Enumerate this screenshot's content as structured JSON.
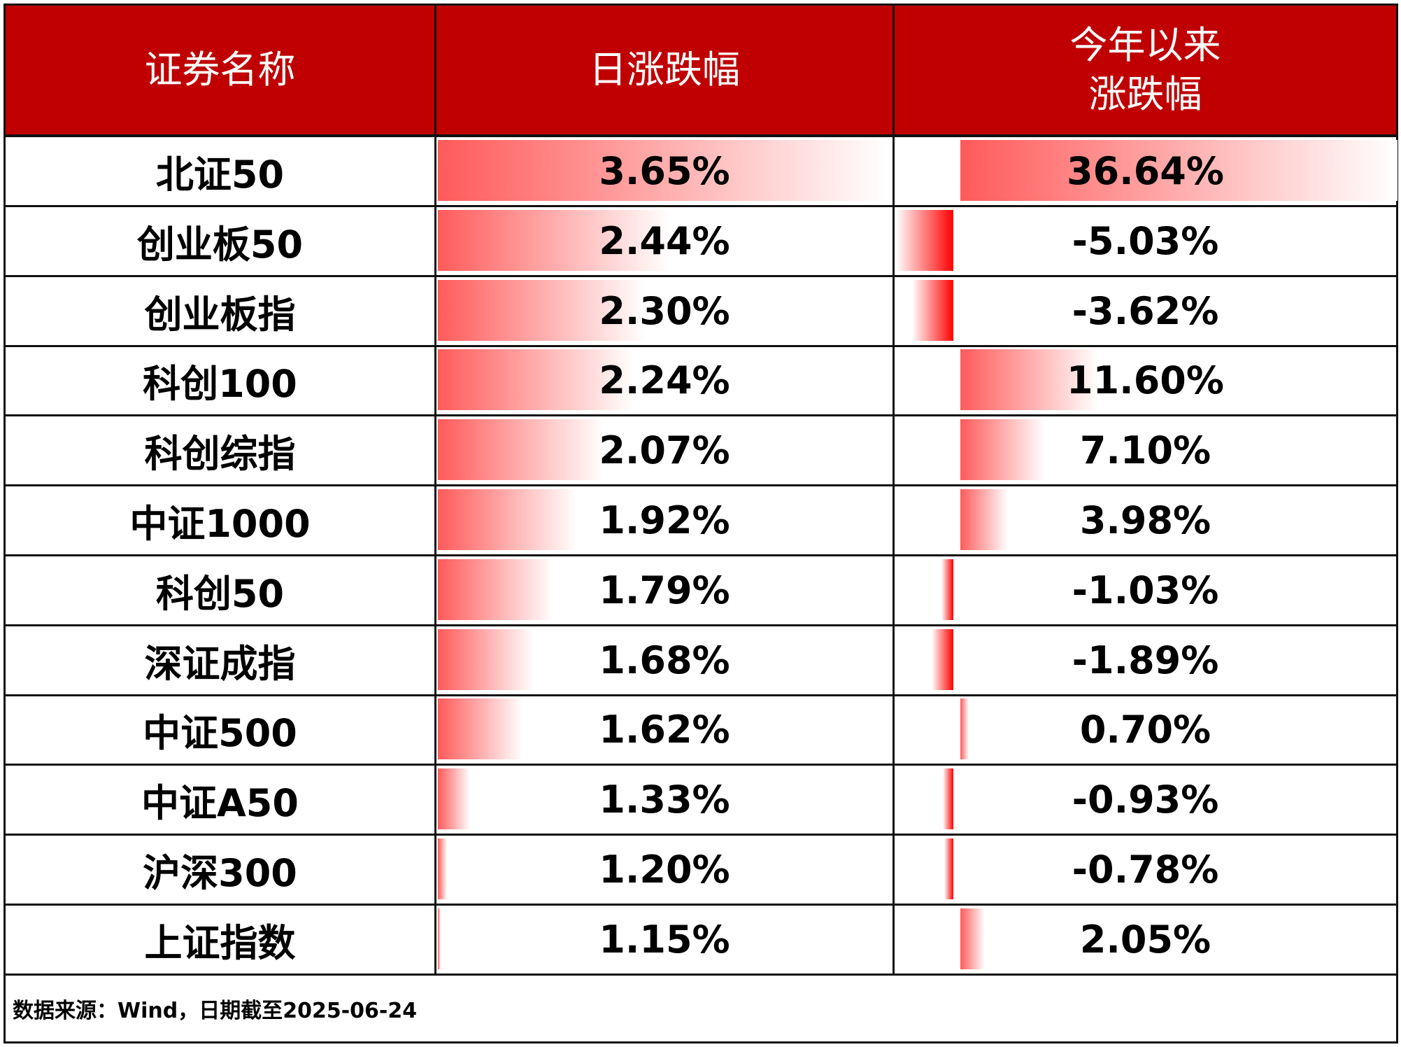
{
  "chart_data": {
    "type": "table",
    "headers": [
      "证券名称",
      "日涨跌幅",
      "今年以来\n涨跌幅"
    ],
    "header_lines": {
      "col3_line1": "今年以来",
      "col3_line2": "涨跌幅"
    },
    "rows": [
      {
        "name": "北证50",
        "daily": "3.65%",
        "ytd": "36.64%"
      },
      {
        "name": "创业板50",
        "daily": "2.44%",
        "ytd": "-5.03%"
      },
      {
        "name": "创业板指",
        "daily": "2.30%",
        "ytd": "-3.62%"
      },
      {
        "name": "科创100",
        "daily": "2.24%",
        "ytd": "11.60%"
      },
      {
        "name": "科创综指",
        "daily": "2.07%",
        "ytd": "7.10%"
      },
      {
        "name": "中证1000",
        "daily": "1.92%",
        "ytd": "3.98%"
      },
      {
        "name": "科创50",
        "daily": "1.79%",
        "ytd": "-1.03%"
      },
      {
        "name": "深证成指",
        "daily": "1.68%",
        "ytd": "-1.89%"
      },
      {
        "name": "中证500",
        "daily": "1.62%",
        "ytd": "0.70%"
      },
      {
        "name": "中证A50",
        "daily": "1.33%",
        "ytd": "-0.93%"
      },
      {
        "name": "沪深300",
        "daily": "1.20%",
        "ytd": "-0.78%"
      },
      {
        "name": "上证指数",
        "daily": "1.15%",
        "ytd": "2.05%"
      }
    ],
    "data_bars": {
      "positive_color": "#ff5a5a",
      "negative_color": "#ff0000",
      "fade_to": "#ffffff"
    }
  },
  "header_color": "#c00000",
  "footer": "数据来源：Wind，日期截至2025-06-24"
}
